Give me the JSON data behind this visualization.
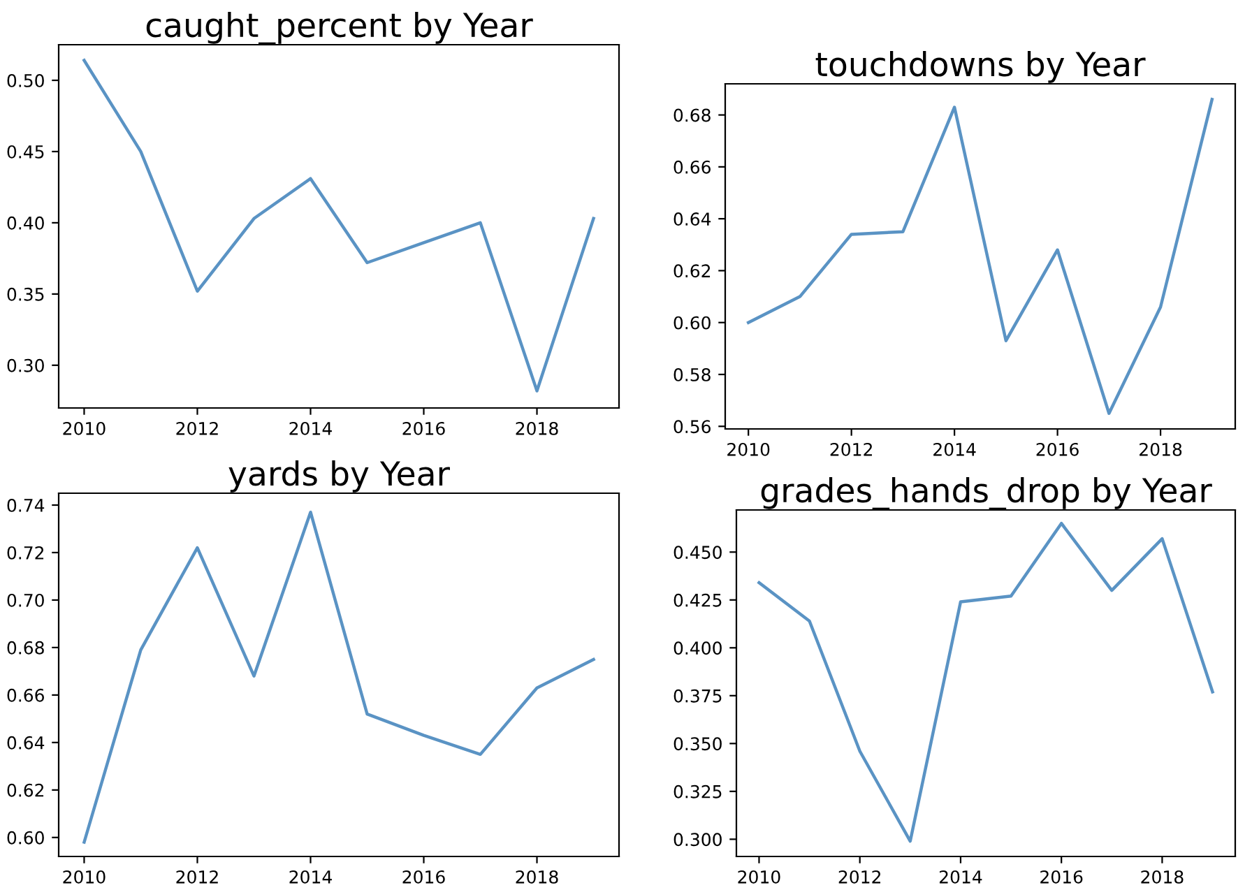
{
  "chart_data": [
    {
      "type": "line",
      "title": "caught_percent by Year",
      "x": [
        2010,
        2011,
        2012,
        2013,
        2014,
        2015,
        2016,
        2017,
        2018,
        2019
      ],
      "series": [
        {
          "color": "#5a93c4",
          "values": [
            0.514,
            0.45,
            0.352,
            0.403,
            0.431,
            0.372,
            0.386,
            0.4,
            0.282,
            0.403
          ]
        }
      ],
      "xlim": [
        2009.55,
        2019.45
      ],
      "xticks": [
        2010,
        2012,
        2014,
        2016,
        2018
      ],
      "ylim": [
        0.27,
        0.525
      ],
      "yticks": [
        {
          "value": 0.3,
          "label": "0.30"
        },
        {
          "value": 0.35,
          "label": "0.35"
        },
        {
          "value": 0.4,
          "label": "0.40"
        },
        {
          "value": 0.45,
          "label": "0.45"
        },
        {
          "value": 0.5,
          "label": "0.50"
        }
      ],
      "grid": false,
      "legend": false
    },
    {
      "type": "line",
      "title": "touchdowns by Year",
      "x": [
        2010,
        2011,
        2012,
        2013,
        2014,
        2015,
        2016,
        2017,
        2018,
        2019
      ],
      "series": [
        {
          "color": "#5a93c4",
          "values": [
            0.6,
            0.61,
            0.634,
            0.635,
            0.683,
            0.593,
            0.628,
            0.565,
            0.606,
            0.686
          ]
        }
      ],
      "xlim": [
        2009.55,
        2019.45
      ],
      "xticks": [
        2010,
        2012,
        2014,
        2016,
        2018
      ],
      "ylim": [
        0.559,
        0.692
      ],
      "yticks": [
        0.56,
        0.58,
        {
          "value": 0.6,
          "label": "0.60"
        },
        0.62,
        0.64,
        0.66,
        0.68
      ],
      "grid": false,
      "legend": false
    },
    {
      "type": "line",
      "title": "yards by Year",
      "x": [
        2010,
        2011,
        2012,
        2013,
        2014,
        2015,
        2016,
        2017,
        2018,
        2019
      ],
      "series": [
        {
          "color": "#5a93c4",
          "values": [
            0.598,
            0.679,
            0.722,
            0.668,
            0.737,
            0.652,
            0.643,
            0.635,
            0.663,
            0.675
          ]
        }
      ],
      "xlim": [
        2009.55,
        2019.45
      ],
      "xticks": [
        2010,
        2012,
        2014,
        2016,
        2018
      ],
      "ylim": [
        0.592,
        0.745
      ],
      "yticks": [
        {
          "value": 0.6,
          "label": "0.60"
        },
        0.62,
        0.64,
        0.66,
        0.68,
        {
          "value": 0.7,
          "label": "0.70"
        },
        0.72,
        0.74
      ],
      "grid": false,
      "legend": false
    },
    {
      "type": "line",
      "title": "grades_hands_drop by Year",
      "x": [
        2010,
        2011,
        2012,
        2013,
        2014,
        2015,
        2016,
        2017,
        2018,
        2019
      ],
      "series": [
        {
          "color": "#5a93c4",
          "values": [
            0.434,
            0.414,
            0.346,
            0.299,
            0.424,
            0.427,
            0.465,
            0.43,
            0.457,
            0.377
          ]
        }
      ],
      "xlim": [
        2009.55,
        2019.45
      ],
      "xticks": [
        2010,
        2012,
        2014,
        2016,
        2018
      ],
      "ylim": [
        0.291,
        0.472
      ],
      "yticks": [
        {
          "value": 0.3,
          "label": "0.300"
        },
        0.325,
        {
          "value": 0.35,
          "label": "0.350"
        },
        0.375,
        {
          "value": 0.4,
          "label": "0.400"
        },
        0.425,
        {
          "value": 0.45,
          "label": "0.450"
        }
      ],
      "grid": false,
      "legend": false
    }
  ]
}
